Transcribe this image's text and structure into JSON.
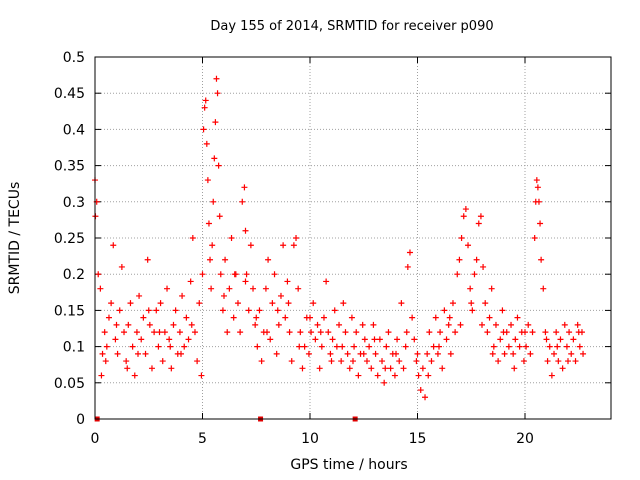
{
  "chart_data": {
    "type": "scatter",
    "title": "Day 155 of 2014, SRMTID for receiver p090",
    "xlabel": "GPS time / hours",
    "ylabel": "SRMTID / TECUs",
    "xlim": [
      0,
      24
    ],
    "ylim": [
      0,
      0.5
    ],
    "xticks": [
      0,
      5,
      10,
      15,
      20
    ],
    "xtick_labels": [
      "0",
      "5",
      "10",
      "15",
      "20"
    ],
    "yticks": [
      0,
      0.05,
      0.1,
      0.15,
      0.2,
      0.25,
      0.3,
      0.35,
      0.4,
      0.45,
      0.5
    ],
    "ytick_labels": [
      "0",
      "0.05",
      "0.1",
      "0.15",
      "0.2",
      "0.25",
      "0.3",
      "0.35",
      "0.4",
      "0.45",
      "0.5"
    ],
    "grid": true,
    "marker": "plus",
    "color": "#ff0000",
    "x_zero_points": [
      0.1,
      7.7,
      12.1
    ],
    "series": [
      {
        "name": "SRMTID",
        "points": [
          [
            0.0,
            0.33
          ],
          [
            0.02,
            0.28
          ],
          [
            0.08,
            0.3
          ],
          [
            0.15,
            0.2
          ],
          [
            0.25,
            0.18
          ],
          [
            0.3,
            0.06
          ],
          [
            0.35,
            0.09
          ],
          [
            0.45,
            0.12
          ],
          [
            0.55,
            0.1
          ],
          [
            0.65,
            0.14
          ],
          [
            0.75,
            0.16
          ],
          [
            0.85,
            0.24
          ],
          [
            0.95,
            0.11
          ],
          [
            1.05,
            0.09
          ],
          [
            1.15,
            0.15
          ],
          [
            1.25,
            0.21
          ],
          [
            1.35,
            0.12
          ],
          [
            1.45,
            0.08
          ],
          [
            1.55,
            0.13
          ],
          [
            1.65,
            0.16
          ],
          [
            1.75,
            0.1
          ],
          [
            1.85,
            0.06
          ],
          [
            1.95,
            0.12
          ],
          [
            2.05,
            0.17
          ],
          [
            2.15,
            0.11
          ],
          [
            2.25,
            0.14
          ],
          [
            2.35,
            0.09
          ],
          [
            2.45,
            0.22
          ],
          [
            2.55,
            0.13
          ],
          [
            2.65,
            0.07
          ],
          [
            2.75,
            0.12
          ],
          [
            2.85,
            0.15
          ],
          [
            2.95,
            0.1
          ],
          [
            3.05,
            0.16
          ],
          [
            3.15,
            0.08
          ],
          [
            3.25,
            0.12
          ],
          [
            3.35,
            0.18
          ],
          [
            3.45,
            0.11
          ],
          [
            3.55,
            0.07
          ],
          [
            3.65,
            0.13
          ],
          [
            3.75,
            0.15
          ],
          [
            3.85,
            0.09
          ],
          [
            3.95,
            0.12
          ],
          [
            4.05,
            0.17
          ],
          [
            4.15,
            0.1
          ],
          [
            4.25,
            0.14
          ],
          [
            4.35,
            0.11
          ],
          [
            4.45,
            0.19
          ],
          [
            4.55,
            0.25
          ],
          [
            4.65,
            0.12
          ],
          [
            4.75,
            0.08
          ],
          [
            4.85,
            0.16
          ],
          [
            4.95,
            0.06
          ],
          [
            5.0,
            0.2
          ],
          [
            5.05,
            0.4
          ],
          [
            5.1,
            0.43
          ],
          [
            5.15,
            0.44
          ],
          [
            5.2,
            0.38
          ],
          [
            5.25,
            0.33
          ],
          [
            5.3,
            0.27
          ],
          [
            5.35,
            0.22
          ],
          [
            5.4,
            0.18
          ],
          [
            5.45,
            0.24
          ],
          [
            5.5,
            0.3
          ],
          [
            5.55,
            0.36
          ],
          [
            5.6,
            0.41
          ],
          [
            5.65,
            0.47
          ],
          [
            5.7,
            0.45
          ],
          [
            5.75,
            0.35
          ],
          [
            5.8,
            0.28
          ],
          [
            5.85,
            0.2
          ],
          [
            5.95,
            0.15
          ],
          [
            6.05,
            0.22
          ],
          [
            6.15,
            0.12
          ],
          [
            6.25,
            0.18
          ],
          [
            6.35,
            0.25
          ],
          [
            6.45,
            0.14
          ],
          [
            6.55,
            0.2
          ],
          [
            6.65,
            0.16
          ],
          [
            6.75,
            0.12
          ],
          [
            6.85,
            0.3
          ],
          [
            6.95,
            0.32
          ],
          [
            7.0,
            0.26
          ],
          [
            7.05,
            0.2
          ],
          [
            7.15,
            0.15
          ],
          [
            7.25,
            0.24
          ],
          [
            7.35,
            0.18
          ],
          [
            7.45,
            0.13
          ],
          [
            7.55,
            0.1
          ],
          [
            7.65,
            0.15
          ],
          [
            7.75,
            0.08
          ],
          [
            7.85,
            0.12
          ],
          [
            7.95,
            0.18
          ],
          [
            8.05,
            0.22
          ],
          [
            8.15,
            0.11
          ],
          [
            8.25,
            0.16
          ],
          [
            8.35,
            0.2
          ],
          [
            8.45,
            0.09
          ],
          [
            8.55,
            0.13
          ],
          [
            8.65,
            0.17
          ],
          [
            8.75,
            0.24
          ],
          [
            8.85,
            0.14
          ],
          [
            8.95,
            0.19
          ],
          [
            9.05,
            0.12
          ],
          [
            9.15,
            0.08
          ],
          [
            9.25,
            0.24
          ],
          [
            9.35,
            0.25
          ],
          [
            9.45,
            0.18
          ],
          [
            9.55,
            0.12
          ],
          [
            9.65,
            0.07
          ],
          [
            9.75,
            0.1
          ],
          [
            9.85,
            0.14
          ],
          [
            9.95,
            0.09
          ],
          [
            10.05,
            0.12
          ],
          [
            10.15,
            0.16
          ],
          [
            10.25,
            0.11
          ],
          [
            10.35,
            0.13
          ],
          [
            10.45,
            0.07
          ],
          [
            10.55,
            0.1
          ],
          [
            10.65,
            0.14
          ],
          [
            10.75,
            0.19
          ],
          [
            10.85,
            0.12
          ],
          [
            10.95,
            0.09
          ],
          [
            11.05,
            0.11
          ],
          [
            11.15,
            0.15
          ],
          [
            11.25,
            0.1
          ],
          [
            11.35,
            0.13
          ],
          [
            11.45,
            0.08
          ],
          [
            11.55,
            0.16
          ],
          [
            11.65,
            0.12
          ],
          [
            11.75,
            0.09
          ],
          [
            11.85,
            0.07
          ],
          [
            11.95,
            0.14
          ],
          [
            12.05,
            0.1
          ],
          [
            12.15,
            0.12
          ],
          [
            12.25,
            0.06
          ],
          [
            12.35,
            0.09
          ],
          [
            12.45,
            0.13
          ],
          [
            12.55,
            0.11
          ],
          [
            12.65,
            0.08
          ],
          [
            12.75,
            0.1
          ],
          [
            12.85,
            0.07
          ],
          [
            12.95,
            0.13
          ],
          [
            13.05,
            0.09
          ],
          [
            13.15,
            0.06
          ],
          [
            13.25,
            0.11
          ],
          [
            13.35,
            0.08
          ],
          [
            13.45,
            0.05
          ],
          [
            13.55,
            0.1
          ],
          [
            13.65,
            0.12
          ],
          [
            13.75,
            0.07
          ],
          [
            13.85,
            0.09
          ],
          [
            13.95,
            0.06
          ],
          [
            14.05,
            0.11
          ],
          [
            14.15,
            0.08
          ],
          [
            14.25,
            0.16
          ],
          [
            14.35,
            0.07
          ],
          [
            14.45,
            0.1
          ],
          [
            14.55,
            0.21
          ],
          [
            14.65,
            0.23
          ],
          [
            14.75,
            0.14
          ],
          [
            14.85,
            0.11
          ],
          [
            14.95,
            0.08
          ],
          [
            15.05,
            0.06
          ],
          [
            15.15,
            0.04
          ],
          [
            15.25,
            0.07
          ],
          [
            15.35,
            0.03
          ],
          [
            15.45,
            0.09
          ],
          [
            15.55,
            0.12
          ],
          [
            15.65,
            0.08
          ],
          [
            15.75,
            0.1
          ],
          [
            15.85,
            0.14
          ],
          [
            15.95,
            0.09
          ],
          [
            16.05,
            0.12
          ],
          [
            16.15,
            0.07
          ],
          [
            16.25,
            0.15
          ],
          [
            16.35,
            0.11
          ],
          [
            16.45,
            0.13
          ],
          [
            16.55,
            0.09
          ],
          [
            16.65,
            0.16
          ],
          [
            16.75,
            0.12
          ],
          [
            16.85,
            0.2
          ],
          [
            16.95,
            0.22
          ],
          [
            17.05,
            0.25
          ],
          [
            17.15,
            0.28
          ],
          [
            17.25,
            0.29
          ],
          [
            17.35,
            0.24
          ],
          [
            17.45,
            0.18
          ],
          [
            17.55,
            0.15
          ],
          [
            17.65,
            0.2
          ],
          [
            17.75,
            0.22
          ],
          [
            17.85,
            0.27
          ],
          [
            17.95,
            0.28
          ],
          [
            18.05,
            0.21
          ],
          [
            18.15,
            0.16
          ],
          [
            18.25,
            0.12
          ],
          [
            18.35,
            0.14
          ],
          [
            18.45,
            0.18
          ],
          [
            18.55,
            0.1
          ],
          [
            18.65,
            0.13
          ],
          [
            18.75,
            0.08
          ],
          [
            18.85,
            0.11
          ],
          [
            18.95,
            0.15
          ],
          [
            19.05,
            0.09
          ],
          [
            19.15,
            0.12
          ],
          [
            19.25,
            0.1
          ],
          [
            19.35,
            0.13
          ],
          [
            19.45,
            0.09
          ],
          [
            19.55,
            0.11
          ],
          [
            19.65,
            0.14
          ],
          [
            19.75,
            0.1
          ],
          [
            19.85,
            0.12
          ],
          [
            19.95,
            0.08
          ],
          [
            20.05,
            0.1
          ],
          [
            20.15,
            0.13
          ],
          [
            20.25,
            0.09
          ],
          [
            20.35,
            0.12
          ],
          [
            20.45,
            0.25
          ],
          [
            20.5,
            0.3
          ],
          [
            20.55,
            0.33
          ],
          [
            20.6,
            0.32
          ],
          [
            20.65,
            0.3
          ],
          [
            20.7,
            0.27
          ],
          [
            20.75,
            0.22
          ],
          [
            20.85,
            0.18
          ],
          [
            20.95,
            0.12
          ],
          [
            21.05,
            0.08
          ],
          [
            21.15,
            0.1
          ],
          [
            21.25,
            0.06
          ],
          [
            21.35,
            0.09
          ],
          [
            21.45,
            0.12
          ],
          [
            21.55,
            0.08
          ],
          [
            21.65,
            0.11
          ],
          [
            21.75,
            0.07
          ],
          [
            21.85,
            0.13
          ],
          [
            21.95,
            0.1
          ],
          [
            22.05,
            0.12
          ],
          [
            22.15,
            0.09
          ],
          [
            22.25,
            0.11
          ],
          [
            22.35,
            0.08
          ],
          [
            22.45,
            0.13
          ],
          [
            22.55,
            0.1
          ],
          [
            22.65,
            0.12
          ],
          [
            22.7,
            0.09
          ],
          [
            0.5,
            0.08
          ],
          [
            1.0,
            0.13
          ],
          [
            1.5,
            0.07
          ],
          [
            2.0,
            0.09
          ],
          [
            2.5,
            0.15
          ],
          [
            3.0,
            0.12
          ],
          [
            3.5,
            0.1
          ],
          [
            4.0,
            0.09
          ],
          [
            4.5,
            0.13
          ],
          [
            6.0,
            0.17
          ],
          [
            6.5,
            0.2
          ],
          [
            7.0,
            0.19
          ],
          [
            7.5,
            0.14
          ],
          [
            8.0,
            0.12
          ],
          [
            8.5,
            0.15
          ],
          [
            9.0,
            0.16
          ],
          [
            9.5,
            0.1
          ],
          [
            10.0,
            0.14
          ],
          [
            10.5,
            0.12
          ],
          [
            11.0,
            0.08
          ],
          [
            11.5,
            0.1
          ],
          [
            12.0,
            0.08
          ],
          [
            12.5,
            0.09
          ],
          [
            13.0,
            0.11
          ],
          [
            13.5,
            0.07
          ],
          [
            14.0,
            0.09
          ],
          [
            14.5,
            0.12
          ],
          [
            15.0,
            0.09
          ],
          [
            15.5,
            0.06
          ],
          [
            16.0,
            0.1
          ],
          [
            16.5,
            0.14
          ],
          [
            17.0,
            0.13
          ],
          [
            17.5,
            0.16
          ],
          [
            18.0,
            0.13
          ],
          [
            18.5,
            0.09
          ],
          [
            19.0,
            0.12
          ],
          [
            19.5,
            0.07
          ],
          [
            20.0,
            0.12
          ],
          [
            21.0,
            0.11
          ],
          [
            21.5,
            0.1
          ],
          [
            22.0,
            0.08
          ],
          [
            22.5,
            0.12
          ]
        ]
      }
    ]
  }
}
